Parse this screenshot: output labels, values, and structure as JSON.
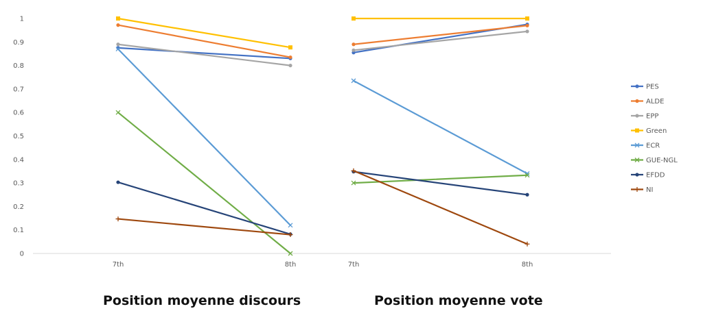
{
  "captions": [
    "Position moyenne discours",
    "Position moyenne vote"
  ],
  "chart_data": [
    {
      "type": "line",
      "title": "Position moyenne discours",
      "categories": [
        "7th",
        "8th"
      ],
      "ylim": [
        0,
        1
      ],
      "yticks": [
        "0",
        "0.1",
        "0.2",
        "0.3",
        "0.4",
        "0.5",
        "0.6",
        "0.7",
        "0.8",
        "0.9",
        "1"
      ],
      "grid": false,
      "series": [
        {
          "name": "PES",
          "color": "#4472c4",
          "marker": "circle",
          "values": [
            0.875,
            0.83
          ]
        },
        {
          "name": "ALDE",
          "color": "#ed7d31",
          "marker": "circle",
          "values": [
            0.972,
            0.835
          ]
        },
        {
          "name": "EPP",
          "color": "#a5a5a5",
          "marker": "circle",
          "values": [
            0.89,
            0.8
          ]
        },
        {
          "name": "Green",
          "color": "#ffc000",
          "marker": "square",
          "values": [
            1.0,
            0.877
          ]
        },
        {
          "name": "ECR",
          "color": "#5b9bd5",
          "marker": "x",
          "values": [
            0.87,
            0.12
          ]
        },
        {
          "name": "GUE-NGL",
          "color": "#70ad47",
          "marker": "x",
          "values": [
            0.6,
            0.0
          ]
        },
        {
          "name": "EFDD",
          "color": "#264478",
          "marker": "circle",
          "values": [
            0.303,
            0.082
          ]
        },
        {
          "name": "NI",
          "color": "#9e480e",
          "marker": "plus",
          "values": [
            0.147,
            0.08
          ]
        }
      ]
    },
    {
      "type": "line",
      "title": "Position moyenne vote",
      "categories": [
        "7th",
        "8th"
      ],
      "ylim": [
        0,
        1
      ],
      "grid": false,
      "legend": "right",
      "series": [
        {
          "name": "PES",
          "color": "#4472c4",
          "marker": "circle",
          "values": [
            0.855,
            0.975
          ]
        },
        {
          "name": "ALDE",
          "color": "#ed7d31",
          "marker": "circle",
          "values": [
            0.89,
            0.97
          ]
        },
        {
          "name": "EPP",
          "color": "#a5a5a5",
          "marker": "circle",
          "values": [
            0.865,
            0.945
          ]
        },
        {
          "name": "Green",
          "color": "#ffc000",
          "marker": "square",
          "values": [
            1.0,
            1.0
          ]
        },
        {
          "name": "ECR",
          "color": "#5b9bd5",
          "marker": "x",
          "values": [
            0.735,
            0.34
          ]
        },
        {
          "name": "GUE-NGL",
          "color": "#70ad47",
          "marker": "x",
          "values": [
            0.3,
            0.333
          ]
        },
        {
          "name": "EFDD",
          "color": "#264478",
          "marker": "circle",
          "values": [
            0.348,
            0.25
          ]
        },
        {
          "name": "NI",
          "color": "#9e480e",
          "marker": "plus",
          "values": [
            0.352,
            0.04
          ]
        }
      ]
    }
  ]
}
